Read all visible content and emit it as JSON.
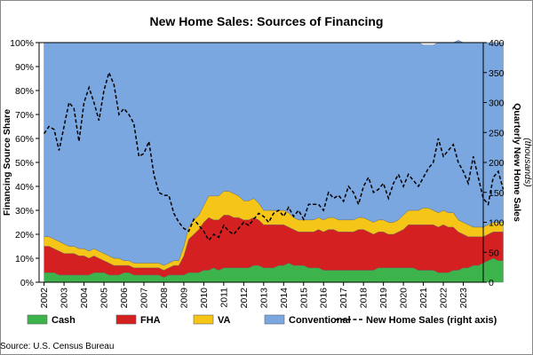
{
  "chart_data": {
    "type": "area",
    "title": "New Home Sales: Sources of Financing",
    "ylabel_left": "Financing Source Share",
    "ylabel_right": "Quarterly New Home Sales",
    "ylabel_right_sub": "(thousands)",
    "source": "Source: U.S. Census Bureau",
    "x_tick_labels": [
      "2002",
      "2003",
      "2004",
      "2005",
      "2006",
      "2007",
      "2008",
      "2009",
      "2010",
      "2011",
      "2012",
      "2013",
      "2014",
      "2015",
      "2016",
      "2017",
      "2018",
      "2019",
      "2020",
      "2021",
      "2022",
      "2023"
    ],
    "ylim_left": [
      0,
      100
    ],
    "ylim_right": [
      0,
      400
    ],
    "left_ticks": [
      "0%",
      "10%",
      "20%",
      "30%",
      "40%",
      "50%",
      "60%",
      "70%",
      "80%",
      "90%",
      "100%"
    ],
    "right_ticks": [
      "0",
      "50",
      "100",
      "150",
      "200",
      "250",
      "300",
      "350",
      "400"
    ],
    "x_start": 2002.0,
    "x_step": 0.25,
    "stacked": true,
    "series": [
      {
        "name": "Cash",
        "color": "#3cb44b",
        "values": [
          4,
          4,
          4,
          3,
          3,
          3,
          3,
          3,
          3,
          3,
          4,
          4,
          4,
          3,
          3,
          3,
          4,
          4,
          3,
          3,
          3,
          3,
          3,
          3,
          2,
          3,
          3,
          3,
          3,
          4,
          4,
          4,
          5,
          5,
          6,
          5,
          6,
          6,
          6,
          6,
          6,
          6,
          7,
          7,
          6,
          6,
          6,
          7,
          7,
          8,
          7,
          7,
          7,
          6,
          6,
          6,
          5,
          5,
          5,
          5,
          5,
          5,
          5,
          5,
          5,
          5,
          5,
          6,
          6,
          6,
          6,
          6,
          6,
          6,
          6,
          5,
          5,
          5,
          5,
          4,
          4,
          4,
          5,
          5,
          6,
          6,
          7,
          7,
          8,
          9,
          10,
          9,
          9
        ]
      },
      {
        "name": "FHA",
        "color": "#d42020",
        "values": [
          11,
          11,
          10,
          10,
          9,
          9,
          9,
          8,
          8,
          7,
          7,
          6,
          5,
          5,
          4,
          4,
          3,
          3,
          3,
          3,
          3,
          3,
          3,
          3,
          3,
          3,
          4,
          4,
          8,
          14,
          16,
          18,
          20,
          22,
          20,
          21,
          22,
          22,
          21,
          21,
          20,
          20,
          20,
          19,
          18,
          18,
          18,
          17,
          17,
          15,
          15,
          14,
          14,
          15,
          15,
          16,
          16,
          17,
          17,
          16,
          16,
          16,
          16,
          17,
          17,
          16,
          15,
          15,
          15,
          14,
          14,
          15,
          16,
          18,
          18,
          19,
          19,
          19,
          19,
          19,
          20,
          19,
          18,
          16,
          14,
          13,
          12,
          12,
          11,
          11,
          11,
          12,
          12
        ]
      },
      {
        "name": "VA",
        "color": "#f5c518",
        "values": [
          4,
          4,
          4,
          4,
          4,
          3,
          3,
          3,
          3,
          3,
          3,
          3,
          3,
          3,
          3,
          3,
          2,
          2,
          2,
          2,
          2,
          2,
          2,
          2,
          2,
          2,
          2,
          2,
          4,
          5,
          6,
          6,
          7,
          9,
          10,
          10,
          10,
          10,
          10,
          9,
          8,
          8,
          8,
          7,
          6,
          6,
          6,
          6,
          6,
          6,
          5,
          5,
          5,
          5,
          5,
          5,
          5,
          5,
          5,
          5,
          5,
          5,
          5,
          5,
          5,
          5,
          5,
          5,
          5,
          5,
          5,
          5,
          6,
          6,
          6,
          6,
          7,
          7,
          6,
          6,
          6,
          6,
          6,
          5,
          5,
          5,
          4,
          4,
          4,
          4,
          4,
          4,
          4
        ]
      },
      {
        "name": "Conventional",
        "color": "#7aa7e0",
        "values": [
          81,
          81,
          82,
          83,
          84,
          85,
          85,
          86,
          86,
          87,
          86,
          87,
          88,
          89,
          90,
          90,
          91,
          91,
          92,
          92,
          92,
          92,
          92,
          92,
          93,
          92,
          91,
          91,
          85,
          77,
          74,
          72,
          68,
          64,
          64,
          64,
          62,
          62,
          63,
          64,
          66,
          66,
          65,
          67,
          70,
          70,
          70,
          70,
          70,
          71,
          73,
          74,
          74,
          74,
          74,
          73,
          74,
          73,
          73,
          74,
          74,
          74,
          74,
          73,
          73,
          74,
          75,
          74,
          74,
          75,
          75,
          74,
          72,
          70,
          70,
          70,
          68,
          68,
          69,
          71,
          70,
          71,
          71,
          75,
          75,
          76,
          77,
          77,
          77,
          76,
          75,
          75,
          75
        ]
      },
      {
        "name": "New Home Sales (right axis)",
        "color": "#000000",
        "axis": "right",
        "line": "dashed",
        "values": [
          248,
          260,
          255,
          220,
          260,
          300,
          290,
          235,
          300,
          325,
          300,
          270,
          320,
          350,
          330,
          280,
          290,
          280,
          265,
          210,
          215,
          235,
          180,
          150,
          145,
          145,
          115,
          100,
          90,
          85,
          105,
          95,
          85,
          70,
          80,
          75,
          95,
          85,
          80,
          90,
          100,
          95,
          105,
          115,
          110,
          100,
          115,
          120,
          110,
          125,
          110,
          120,
          105,
          130,
          130,
          130,
          120,
          150,
          140,
          145,
          135,
          160,
          150,
          130,
          160,
          175,
          150,
          155,
          165,
          140,
          165,
          180,
          160,
          180,
          170,
          160,
          175,
          190,
          200,
          240,
          210,
          220,
          230,
          200,
          185,
          165,
          210,
          175,
          140,
          130,
          175,
          185,
          155
        ]
      }
    ],
    "legend_placement": "bottom",
    "grid": false
  }
}
